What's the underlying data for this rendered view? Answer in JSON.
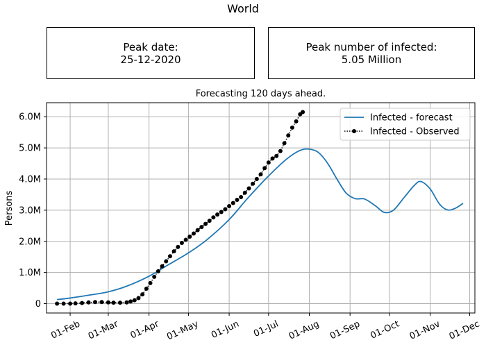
{
  "title": "World",
  "stats": {
    "peak_date_label": "Peak date:",
    "peak_date_value": "25-12-2020",
    "peak_infected_label": "Peak number of infected:",
    "peak_infected_value": "5.05 Million"
  },
  "chart_data": {
    "type": "line",
    "title": "Forecasting 120 days ahead.",
    "xlabel": "",
    "ylabel": "Persons",
    "x_axis_type": "date",
    "xlim": [
      "2020-01-14",
      "2020-12-05"
    ],
    "ylim": [
      -300000,
      6450000
    ],
    "x_ticks": [
      {
        "date": "2020-02-01",
        "label": "01-Feb"
      },
      {
        "date": "2020-03-01",
        "label": "01-Mar"
      },
      {
        "date": "2020-04-01",
        "label": "01-Apr"
      },
      {
        "date": "2020-05-01",
        "label": "01-May"
      },
      {
        "date": "2020-06-01",
        "label": "01-Jun"
      },
      {
        "date": "2020-07-01",
        "label": "01-Jul"
      },
      {
        "date": "2020-08-01",
        "label": "01-Aug"
      },
      {
        "date": "2020-09-01",
        "label": "01-Sep"
      },
      {
        "date": "2020-10-01",
        "label": "01-Oct"
      },
      {
        "date": "2020-11-01",
        "label": "01-Nov"
      },
      {
        "date": "2020-12-01",
        "label": "01-Dec"
      }
    ],
    "y_ticks": [
      {
        "value": 0,
        "label": "0"
      },
      {
        "value": 1000000,
        "label": "1.0M"
      },
      {
        "value": 2000000,
        "label": "2.0M"
      },
      {
        "value": 3000000,
        "label": "3.0M"
      },
      {
        "value": 4000000,
        "label": "4.0M"
      },
      {
        "value": 5000000,
        "label": "5.0M"
      },
      {
        "value": 6000000,
        "label": "6.0M"
      }
    ],
    "grid": true,
    "legend_position": "top-right",
    "series": [
      {
        "name": "Infected - forecast",
        "style": "line",
        "color": "#1f77b4",
        "points": [
          [
            "2020-01-22",
            130000
          ],
          [
            "2020-02-01",
            180000
          ],
          [
            "2020-02-15",
            270000
          ],
          [
            "2020-03-01",
            380000
          ],
          [
            "2020-03-15",
            560000
          ],
          [
            "2020-04-01",
            880000
          ],
          [
            "2020-04-15",
            1230000
          ],
          [
            "2020-05-01",
            1630000
          ],
          [
            "2020-05-15",
            2050000
          ],
          [
            "2020-06-01",
            2700000
          ],
          [
            "2020-06-15",
            3380000
          ],
          [
            "2020-07-01",
            4100000
          ],
          [
            "2020-07-15",
            4650000
          ],
          [
            "2020-07-25",
            4920000
          ],
          [
            "2020-08-01",
            4960000
          ],
          [
            "2020-08-08",
            4850000
          ],
          [
            "2020-08-15",
            4500000
          ],
          [
            "2020-08-22",
            4000000
          ],
          [
            "2020-08-29",
            3550000
          ],
          [
            "2020-09-05",
            3370000
          ],
          [
            "2020-09-12",
            3360000
          ],
          [
            "2020-09-20",
            3150000
          ],
          [
            "2020-09-27",
            2930000
          ],
          [
            "2020-10-04",
            3000000
          ],
          [
            "2020-10-12",
            3400000
          ],
          [
            "2020-10-20",
            3800000
          ],
          [
            "2020-10-25",
            3920000
          ],
          [
            "2020-11-01",
            3680000
          ],
          [
            "2020-11-08",
            3200000
          ],
          [
            "2020-11-14",
            3010000
          ],
          [
            "2020-11-20",
            3060000
          ],
          [
            "2020-11-26",
            3220000
          ]
        ]
      },
      {
        "name": "Infected - Observed",
        "style": "dotted-markers",
        "color": "#000000",
        "points": [
          [
            "2020-01-22",
            0
          ],
          [
            "2020-01-27",
            0
          ],
          [
            "2020-02-01",
            0
          ],
          [
            "2020-02-05",
            10000
          ],
          [
            "2020-02-10",
            20000
          ],
          [
            "2020-02-15",
            40000
          ],
          [
            "2020-02-20",
            50000
          ],
          [
            "2020-02-25",
            50000
          ],
          [
            "2020-03-01",
            40000
          ],
          [
            "2020-03-05",
            30000
          ],
          [
            "2020-03-10",
            30000
          ],
          [
            "2020-03-15",
            40000
          ],
          [
            "2020-03-18",
            70000
          ],
          [
            "2020-03-21",
            110000
          ],
          [
            "2020-03-24",
            180000
          ],
          [
            "2020-03-27",
            300000
          ],
          [
            "2020-03-30",
            480000
          ],
          [
            "2020-04-02",
            660000
          ],
          [
            "2020-04-05",
            860000
          ],
          [
            "2020-04-08",
            1040000
          ],
          [
            "2020-04-11",
            1200000
          ],
          [
            "2020-04-14",
            1360000
          ],
          [
            "2020-04-17",
            1520000
          ],
          [
            "2020-04-20",
            1680000
          ],
          [
            "2020-04-23",
            1820000
          ],
          [
            "2020-04-26",
            1950000
          ],
          [
            "2020-04-29",
            2050000
          ],
          [
            "2020-05-02",
            2150000
          ],
          [
            "2020-05-05",
            2250000
          ],
          [
            "2020-05-08",
            2360000
          ],
          [
            "2020-05-11",
            2460000
          ],
          [
            "2020-05-14",
            2560000
          ],
          [
            "2020-05-17",
            2660000
          ],
          [
            "2020-05-20",
            2770000
          ],
          [
            "2020-05-23",
            2860000
          ],
          [
            "2020-05-26",
            2940000
          ],
          [
            "2020-05-29",
            3030000
          ],
          [
            "2020-06-01",
            3130000
          ],
          [
            "2020-06-04",
            3230000
          ],
          [
            "2020-06-07",
            3330000
          ],
          [
            "2020-06-10",
            3420000
          ],
          [
            "2020-06-13",
            3560000
          ],
          [
            "2020-06-16",
            3700000
          ],
          [
            "2020-06-19",
            3850000
          ],
          [
            "2020-06-22",
            4000000
          ],
          [
            "2020-06-25",
            4150000
          ],
          [
            "2020-06-28",
            4350000
          ],
          [
            "2020-07-01",
            4530000
          ],
          [
            "2020-07-04",
            4660000
          ],
          [
            "2020-07-07",
            4740000
          ],
          [
            "2020-07-10",
            4900000
          ],
          [
            "2020-07-13",
            5150000
          ],
          [
            "2020-07-16",
            5400000
          ],
          [
            "2020-07-19",
            5650000
          ],
          [
            "2020-07-22",
            5850000
          ],
          [
            "2020-07-25",
            6080000
          ],
          [
            "2020-07-27",
            6150000
          ]
        ]
      }
    ]
  }
}
